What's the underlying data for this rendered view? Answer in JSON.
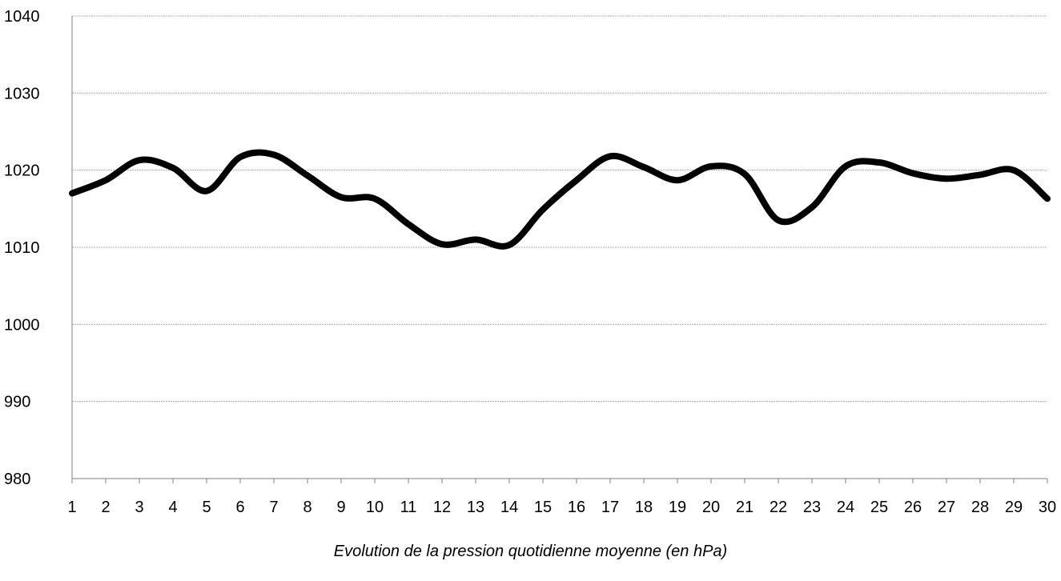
{
  "chart_data": {
    "type": "line",
    "title": "",
    "caption": "Evolution de la pression quotidienne moyenne (en hPa)",
    "xlabel": "",
    "ylabel": "",
    "ylim": [
      980,
      1040
    ],
    "yticks": [
      980,
      990,
      1000,
      1010,
      1020,
      1030,
      1040
    ],
    "x": [
      1,
      2,
      3,
      4,
      5,
      6,
      7,
      8,
      9,
      10,
      11,
      12,
      13,
      14,
      15,
      16,
      17,
      18,
      19,
      20,
      21,
      22,
      23,
      24,
      25,
      26,
      27,
      28,
      29,
      30
    ],
    "grid": true,
    "legend": "none",
    "series": [
      {
        "name": "",
        "color": "#000000",
        "values": [
          1017.0,
          1018.7,
          1021.3,
          1020.3,
          1017.3,
          1021.7,
          1022.0,
          1019.3,
          1016.5,
          1016.3,
          1013.0,
          1010.4,
          1011.0,
          1010.3,
          1014.9,
          1018.7,
          1021.8,
          1020.4,
          1018.7,
          1020.5,
          1019.5,
          1013.5,
          1015.2,
          1020.5,
          1021.0,
          1019.6,
          1018.9,
          1019.4,
          1020.0,
          1016.3
        ]
      }
    ]
  }
}
